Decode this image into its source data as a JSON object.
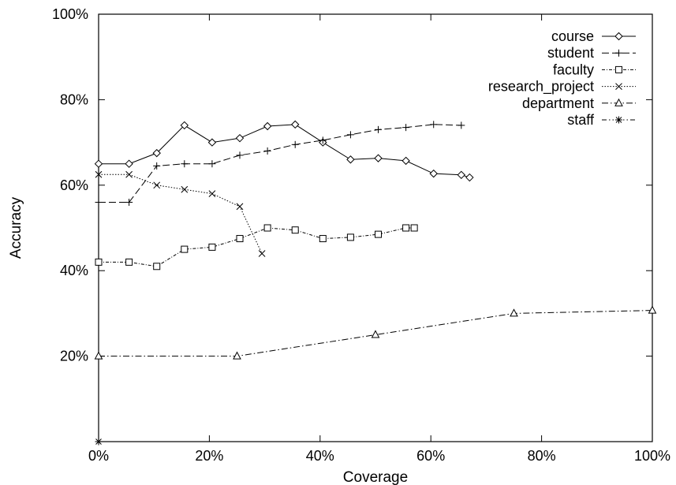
{
  "chart_data": {
    "type": "line",
    "title": "",
    "xlabel": "Coverage",
    "ylabel": "Accuracy",
    "xlim": [
      0,
      100
    ],
    "ylim": [
      0,
      100
    ],
    "x_ticks": [
      "0%",
      "20%",
      "40%",
      "60%",
      "80%",
      "100%"
    ],
    "y_ticks": [
      "20%",
      "40%",
      "60%",
      "80%",
      "100%"
    ],
    "grid": false,
    "legend_position": "top-right",
    "series": [
      {
        "name": "course",
        "marker": "diamond",
        "dash": "solid",
        "x": [
          0,
          5.5,
          10.5,
          15.5,
          20.5,
          25.5,
          30.5,
          35.5,
          40.5,
          45.5,
          50.5,
          55.5,
          60.5,
          65.5,
          67
        ],
        "y": [
          65,
          65,
          67.5,
          74,
          70,
          71,
          73.8,
          74.2,
          70,
          66,
          66.3,
          65.7,
          62.7,
          62.4,
          61.8
        ]
      },
      {
        "name": "student",
        "marker": "plus",
        "dash": "dashed",
        "x": [
          0,
          5.5,
          10.5,
          15.5,
          20.5,
          25.5,
          30.5,
          35.5,
          40.5,
          45.5,
          50.5,
          55.5,
          60.5,
          65.5
        ],
        "y": [
          56,
          56,
          64.5,
          65,
          65,
          67,
          68,
          69.5,
          70.5,
          71.8,
          73,
          73.5,
          74.2,
          74
        ]
      },
      {
        "name": "faculty",
        "marker": "square",
        "dash": "dotted-dashed",
        "x": [
          0,
          5.5,
          10.5,
          15.5,
          20.5,
          25.5,
          30.5,
          35.5,
          40.5,
          45.5,
          50.5,
          55.5,
          57
        ],
        "y": [
          42,
          42,
          41,
          45,
          45.5,
          47.5,
          50,
          49.5,
          47.5,
          47.8,
          48.5,
          50,
          50
        ]
      },
      {
        "name": "research_project",
        "marker": "cross",
        "dash": "dotted",
        "x": [
          0,
          5.5,
          10.5,
          15.5,
          20.5,
          25.5,
          29.5
        ],
        "y": [
          62.5,
          62.5,
          60,
          59,
          58,
          55,
          44
        ]
      },
      {
        "name": "department",
        "marker": "triangle",
        "dash": "dash-dot",
        "x": [
          0,
          25,
          50,
          75,
          100
        ],
        "y": [
          20,
          20,
          25,
          30,
          30.7
        ]
      },
      {
        "name": "staff",
        "marker": "asterisk",
        "dash": "dash-dot-dot",
        "x": [
          0
        ],
        "y": [
          0
        ]
      }
    ]
  }
}
